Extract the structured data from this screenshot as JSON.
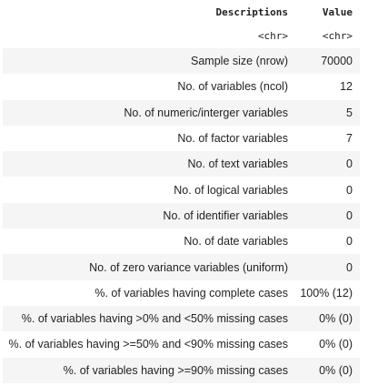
{
  "table": {
    "columns": [
      "Descriptions",
      "Value"
    ],
    "types": [
      "<chr>",
      "<chr>"
    ],
    "rows": [
      [
        "Sample size (nrow)",
        "70000"
      ],
      [
        "No. of variables (ncol)",
        "12"
      ],
      [
        "No. of numeric/interger variables",
        "5"
      ],
      [
        "No. of factor variables",
        "7"
      ],
      [
        "No. of text variables",
        "0"
      ],
      [
        "No. of logical variables",
        "0"
      ],
      [
        "No. of identifier variables",
        "0"
      ],
      [
        "No. of date variables",
        "0"
      ],
      [
        "No. of zero variance variables (uniform)",
        "0"
      ],
      [
        "%. of variables having complete cases",
        "100% (12)"
      ],
      [
        "%. of variables having >0% and <50% missing cases",
        "0% (0)"
      ],
      [
        "%. of variables having >=50% and <90% missing cases",
        "0% (0)"
      ],
      [
        "%. of variables having >=90% missing cases",
        "0% (0)"
      ]
    ]
  }
}
